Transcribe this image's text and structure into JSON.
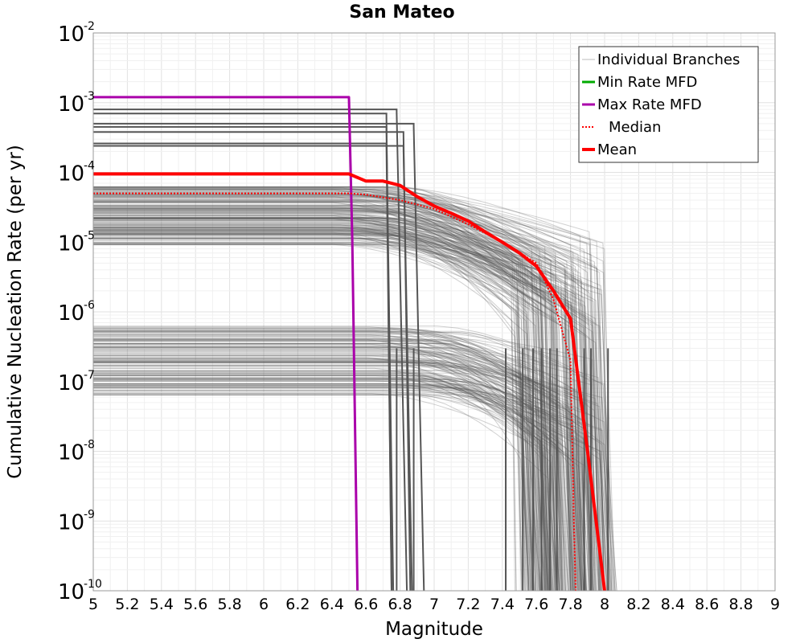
{
  "chart_data": {
    "type": "line",
    "title": "San Mateo",
    "xlabel": "Magnitude",
    "ylabel": "Cumulative Nucleation Rate (per yr)",
    "xlim": [
      5,
      9
    ],
    "ylim": [
      1e-10,
      0.01
    ],
    "y_scale": "log",
    "grid": true,
    "x_ticks": [
      "5",
      "5.2",
      "5.4",
      "5.6",
      "5.8",
      "6",
      "6.2",
      "6.4",
      "6.6",
      "6.8",
      "7",
      "7.2",
      "7.4",
      "7.6",
      "7.8",
      "8",
      "8.2",
      "8.4",
      "8.6",
      "8.8",
      "9"
    ],
    "y_ticks": [
      {
        "base": "10",
        "exp": "-2"
      },
      {
        "base": "10",
        "exp": "-3"
      },
      {
        "base": "10",
        "exp": "-4"
      },
      {
        "base": "10",
        "exp": "-5"
      },
      {
        "base": "10",
        "exp": "-6"
      },
      {
        "base": "10",
        "exp": "-7"
      },
      {
        "base": "10",
        "exp": "-8"
      },
      {
        "base": "10",
        "exp": "-9"
      },
      {
        "base": "10",
        "exp": "-10"
      }
    ],
    "legend_position": "top-right",
    "legend": [
      {
        "label": "Individual Branches",
        "color": "#bbbbbb",
        "style": "thin"
      },
      {
        "label": "Min Rate MFD",
        "color": "#00aa00",
        "style": "solid"
      },
      {
        "label": "Max Rate MFD",
        "color": "#aa00aa",
        "style": "solid"
      },
      {
        "label": "Median",
        "color": "#ff0000",
        "style": "dotted"
      },
      {
        "label": "Mean",
        "color": "#ff0000",
        "style": "thick"
      }
    ],
    "series": [
      {
        "name": "Max Rate MFD",
        "color": "#aa00aa",
        "x": [
          5.0,
          6.5,
          6.5,
          6.52,
          6.55
        ],
        "y": [
          0.0012,
          0.0012,
          0.0012,
          1e-05,
          1e-10
        ]
      },
      {
        "name": "Median",
        "color": "#ff0000",
        "x": [
          5.0,
          6.5,
          6.6,
          6.8,
          7.0,
          7.2,
          7.4,
          7.6,
          7.7,
          7.8,
          7.82,
          7.83
        ],
        "y": [
          5e-05,
          5e-05,
          4.8e-05,
          4e-05,
          3e-05,
          1.8e-05,
          1e-05,
          5e-06,
          1.5e-06,
          2e-07,
          1e-09,
          1e-10
        ]
      },
      {
        "name": "Mean",
        "color": "#ff0000",
        "x": [
          5.0,
          6.5,
          6.6,
          6.7,
          6.8,
          6.9,
          7.0,
          7.1,
          7.2,
          7.3,
          7.4,
          7.5,
          7.6,
          7.7,
          7.8,
          7.9,
          8.0
        ],
        "y": [
          9.5e-05,
          9.5e-05,
          7.5e-05,
          7.5e-05,
          6.5e-05,
          4.5e-05,
          3.3e-05,
          2.6e-05,
          2e-05,
          1.4e-05,
          1e-05,
          7e-06,
          4.5e-06,
          2e-06,
          8e-07,
          1e-08,
          1e-10
        ]
      }
    ],
    "branch_families": [
      {
        "level": 0.0008,
        "m_break": 6.78,
        "m_end": 6.84
      },
      {
        "level": 0.0007,
        "m_break": 6.72,
        "m_end": 6.75
      },
      {
        "level": 0.0005,
        "m_break": 6.88,
        "m_end": 6.94
      },
      {
        "level": 0.00045,
        "m_break": 6.72,
        "m_end": 6.76
      },
      {
        "level": 0.00038,
        "m_break": 6.82,
        "m_end": 6.86
      },
      {
        "level": 0.00026,
        "m_break": 6.72,
        "m_end": 6.75
      },
      {
        "level": 0.00024,
        "m_break": 6.82,
        "m_end": 6.87
      }
    ]
  }
}
